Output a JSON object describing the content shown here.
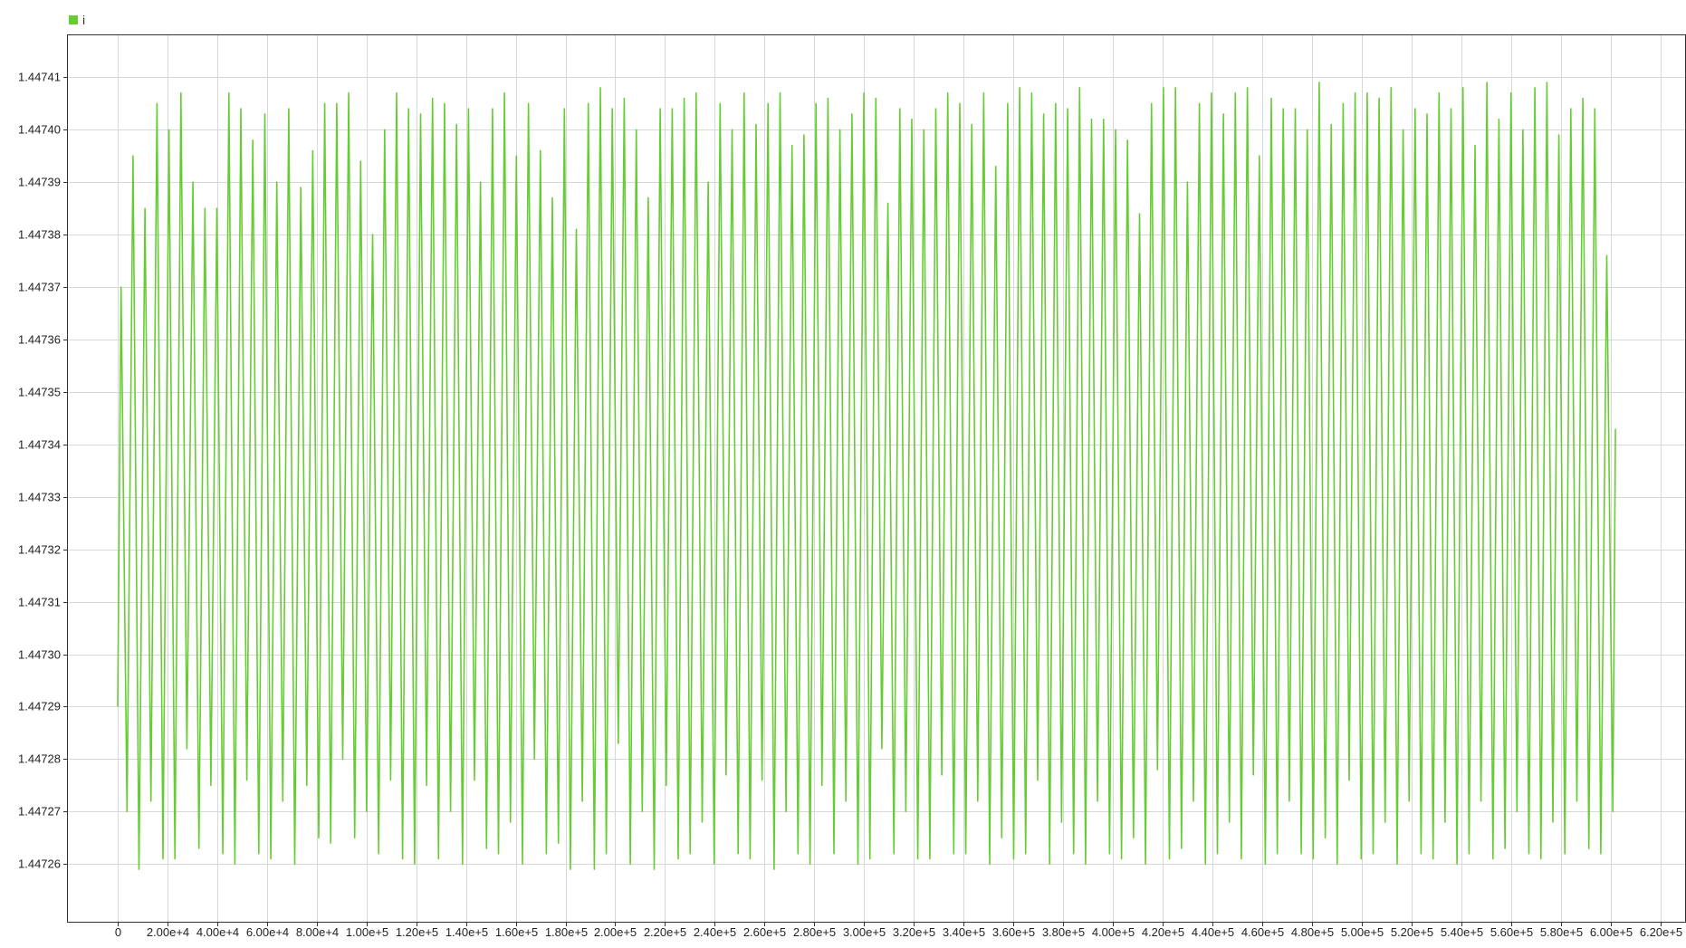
{
  "chart_data": {
    "type": "line",
    "title": "",
    "xlabel": "",
    "ylabel": "",
    "legend": {
      "placement": "top-left",
      "entries": [
        "i"
      ]
    },
    "grid": true,
    "xlim": [
      -20000,
      630000
    ],
    "ylim": [
      1.447249,
      1.447418
    ],
    "x_ticks": [
      0,
      20000,
      40000,
      60000,
      80000,
      100000,
      120000,
      140000,
      160000,
      180000,
      200000,
      220000,
      240000,
      260000,
      280000,
      300000,
      320000,
      340000,
      360000,
      380000,
      400000,
      420000,
      440000,
      460000,
      480000,
      500000,
      520000,
      540000,
      560000,
      580000,
      600000,
      620000
    ],
    "x_tick_labels": [
      "0",
      "2.00e+4",
      "4.00e+4",
      "6.00e+4",
      "8.00e+4",
      "1.00e+5",
      "1.20e+5",
      "1.40e+5",
      "1.60e+5",
      "1.80e+5",
      "2.00e+5",
      "2.20e+5",
      "2.40e+5",
      "2.60e+5",
      "2.80e+5",
      "3.00e+5",
      "3.20e+5",
      "3.40e+5",
      "3.60e+5",
      "3.80e+5",
      "4.00e+5",
      "4.20e+5",
      "4.40e+5",
      "4.60e+5",
      "4.80e+5",
      "5.00e+5",
      "5.20e+5",
      "5.40e+5",
      "5.60e+5",
      "5.80e+5",
      "6.00e+5",
      "6.20e+5"
    ],
    "y_ticks": [
      1.44726,
      1.44727,
      1.44728,
      1.44729,
      1.4473,
      1.44731,
      1.44732,
      1.44733,
      1.44734,
      1.44735,
      1.44736,
      1.44737,
      1.44738,
      1.44739,
      1.4474,
      1.44741
    ],
    "y_tick_labels": [
      "1.44726",
      "1.44727",
      "1.44728",
      "1.44729",
      "1.44730",
      "1.44731",
      "1.44732",
      "1.44733",
      "1.44734",
      "1.44735",
      "1.44736",
      "1.44737",
      "1.44738",
      "1.44739",
      "1.44740",
      "1.44741"
    ],
    "series": [
      {
        "name": "i",
        "color": "#66cc33",
        "x_start": 0,
        "x_end": 602000,
        "y_start": 1.44729,
        "y_end": 1.447343,
        "peaks": [
          1.44737,
          1.447395,
          1.447385,
          1.447405,
          1.4474,
          1.447407,
          1.44739,
          1.447385,
          1.447385,
          1.447407,
          1.447404,
          1.447398,
          1.447403,
          1.44739,
          1.447404,
          1.447389,
          1.447396,
          1.447405,
          1.447405,
          1.447407,
          1.447394,
          1.44738,
          1.4474,
          1.447407,
          1.447404,
          1.447403,
          1.447406,
          1.447405,
          1.447401,
          1.447404,
          1.44739,
          1.447404,
          1.447407,
          1.447395,
          1.447405,
          1.447396,
          1.447387,
          1.447404,
          1.447381,
          1.447405,
          1.447408,
          1.447404,
          1.447406,
          1.4474,
          1.447387,
          1.447404,
          1.447404,
          1.447406,
          1.447407,
          1.44739,
          1.447405,
          1.4474,
          1.447407,
          1.447401,
          1.447405,
          1.447407,
          1.447397,
          1.447399,
          1.447405,
          1.447406,
          1.4474,
          1.447403,
          1.447407,
          1.447406,
          1.447386,
          1.447404,
          1.447402,
          1.4474,
          1.447404,
          1.447407,
          1.447405,
          1.447401,
          1.447407,
          1.447393,
          1.447405,
          1.447408,
          1.447407,
          1.447403,
          1.447405,
          1.447404,
          1.447408,
          1.447402,
          1.447402,
          1.4474,
          1.447398,
          1.447384,
          1.447405,
          1.447408,
          1.447408,
          1.44739,
          1.447405,
          1.447407,
          1.447403,
          1.447407,
          1.447408,
          1.447395,
          1.447406,
          1.447404,
          1.447404,
          1.4474,
          1.447409,
          1.447401,
          1.447405,
          1.447407,
          1.447407,
          1.447406,
          1.447408,
          1.4474,
          1.447404,
          1.447403,
          1.447407,
          1.447404,
          1.447408,
          1.447397,
          1.447409,
          1.447402,
          1.447407,
          1.4474,
          1.447408,
          1.447409,
          1.447399,
          1.447404,
          1.447406,
          1.447404,
          1.447376
        ],
        "troughs": [
          1.44727,
          1.447259,
          1.447272,
          1.447261,
          1.447261,
          1.447282,
          1.447263,
          1.447275,
          1.447262,
          1.44726,
          1.447276,
          1.447262,
          1.447261,
          1.447272,
          1.44726,
          1.447275,
          1.447265,
          1.447264,
          1.44728,
          1.447265,
          1.44727,
          1.447262,
          1.447276,
          1.447261,
          1.44726,
          1.447275,
          1.447261,
          1.44727,
          1.44726,
          1.447276,
          1.447263,
          1.447262,
          1.447268,
          1.44726,
          1.44728,
          1.447262,
          1.447264,
          1.447259,
          1.447272,
          1.447259,
          1.447262,
          1.447283,
          1.44726,
          1.44727,
          1.447259,
          1.447275,
          1.447261,
          1.447262,
          1.447268,
          1.44726,
          1.447277,
          1.447262,
          1.447261,
          1.447276,
          1.447259,
          1.44727,
          1.447262,
          1.44726,
          1.447275,
          1.447262,
          1.447272,
          1.44726,
          1.447261,
          1.447282,
          1.447262,
          1.44727,
          1.447261,
          1.447261,
          1.447277,
          1.447262,
          1.447262,
          1.447272,
          1.44726,
          1.447265,
          1.447261,
          1.447262,
          1.447276,
          1.44726,
          1.447268,
          1.447262,
          1.44726,
          1.447272,
          1.447262,
          1.447261,
          1.447265,
          1.44726,
          1.447278,
          1.447261,
          1.447263,
          1.447272,
          1.44726,
          1.447262,
          1.447268,
          1.447261,
          1.447277,
          1.44726,
          1.447262,
          1.447272,
          1.447262,
          1.447261,
          1.447265,
          1.44726,
          1.447276,
          1.447261,
          1.447262,
          1.447268,
          1.44726,
          1.447272,
          1.447262,
          1.447261,
          1.447268,
          1.44726,
          1.447262,
          1.447272,
          1.447261,
          1.447263,
          1.44727,
          1.447262,
          1.447261,
          1.447268,
          1.447262,
          1.447272,
          1.447263,
          1.447262,
          1.44727,
          1.447266
        ]
      }
    ]
  }
}
